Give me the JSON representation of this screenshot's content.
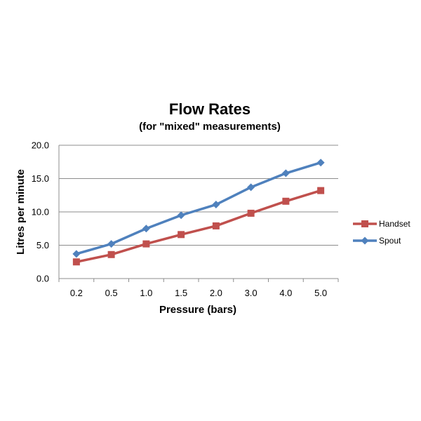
{
  "chart_data": {
    "type": "line",
    "title": "Flow Rates",
    "subtitle": "(for \"mixed\" measurements)",
    "xlabel": "Pressure (bars)",
    "ylabel": "Litres per minute",
    "categories": [
      "0.2",
      "0.5",
      "1.0",
      "1.5",
      "2.0",
      "3.0",
      "4.0",
      "5.0"
    ],
    "ylim": [
      0,
      20
    ],
    "yticks": [
      "0.0",
      "5.0",
      "10.0",
      "15.0",
      "20.0"
    ],
    "grid": true,
    "legend_position": "right",
    "series": [
      {
        "name": "Handset",
        "color": "#c0504d",
        "marker": "square",
        "values": [
          2.5,
          3.6,
          5.2,
          6.6,
          7.9,
          9.8,
          11.6,
          13.2
        ]
      },
      {
        "name": "Spout",
        "color": "#4f81bd",
        "marker": "diamond",
        "values": [
          3.7,
          5.2,
          7.5,
          9.5,
          11.1,
          13.7,
          15.8,
          17.4
        ]
      }
    ]
  }
}
